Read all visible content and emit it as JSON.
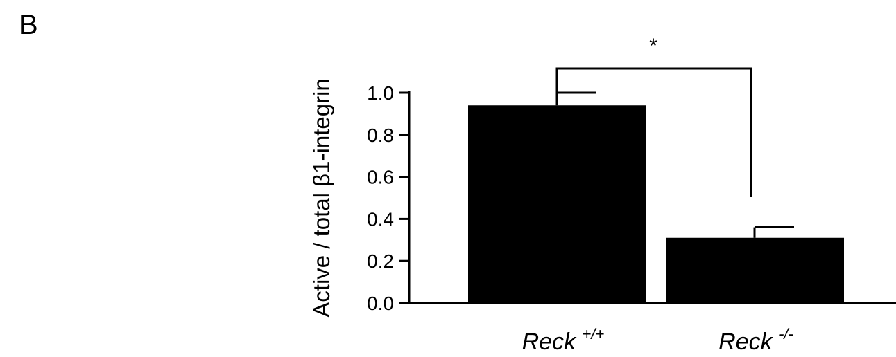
{
  "panel_label": "B",
  "chart_data": {
    "type": "bar",
    "categories": [
      {
        "name": "Reck",
        "sup": "+/+"
      },
      {
        "name": "Reck",
        "sup": "-/-"
      }
    ],
    "values": [
      0.94,
      0.31
    ],
    "error_bars": [
      0.06,
      0.05
    ],
    "title": "",
    "xlabel": "",
    "ylabel": "Active / total β1-integrin",
    "ylim": [
      0,
      1.0
    ],
    "yticks": [
      0.0,
      0.2,
      0.4,
      0.6,
      0.8,
      1.0
    ],
    "ytick_labels": [
      "0.0",
      "0.2",
      "0.4",
      "0.6",
      "0.8",
      "1.0"
    ],
    "significance": {
      "label": "*",
      "between": [
        0,
        1
      ]
    },
    "bar_color": "#000000",
    "grid": false,
    "legend": "none"
  }
}
